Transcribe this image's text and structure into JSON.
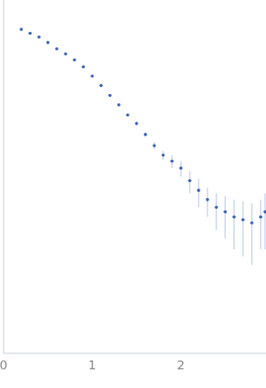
{
  "chart_data": {
    "type": "scatter",
    "x": [
      0.2,
      0.3,
      0.4,
      0.5,
      0.6,
      0.7,
      0.8,
      0.9,
      1.0,
      1.1,
      1.2,
      1.3,
      1.4,
      1.5,
      1.6,
      1.7,
      1.8,
      1.9,
      2.0,
      2.1,
      2.2,
      2.3,
      2.4,
      2.5,
      2.6,
      2.7,
      2.8,
      2.9,
      2.95
    ],
    "values": [
      0.93,
      0.84,
      0.76,
      0.66,
      0.56,
      0.49,
      0.42,
      0.35,
      0.275,
      0.215,
      0.166,
      0.13,
      0.1,
      0.08,
      0.06,
      0.045,
      0.035,
      0.03,
      0.025,
      0.018,
      0.014,
      0.011,
      0.009,
      0.008,
      0.007,
      0.0065,
      0.006,
      0.007,
      0.008
    ],
    "errors": [
      0.005,
      0.004,
      0.004,
      0.004,
      0.003,
      0.003,
      0.003,
      0.003,
      0.003,
      0.003,
      0.003,
      0.003,
      0.003,
      0.004,
      0.004,
      0.004,
      0.004,
      0.005,
      0.005,
      0.005,
      0.005,
      0.004,
      0.004,
      0.004,
      0.004,
      0.004,
      0.004,
      0.004,
      0.005
    ],
    "color": "#3a62b5",
    "xlim": [
      0,
      2.96
    ],
    "xticks": [
      0,
      1,
      2
    ],
    "ylim": [
      0.0002,
      2
    ],
    "yticks": [
      1,
      0.1,
      0.01,
      0.001
    ],
    "log": "y",
    "tick_labels": "x"
  }
}
